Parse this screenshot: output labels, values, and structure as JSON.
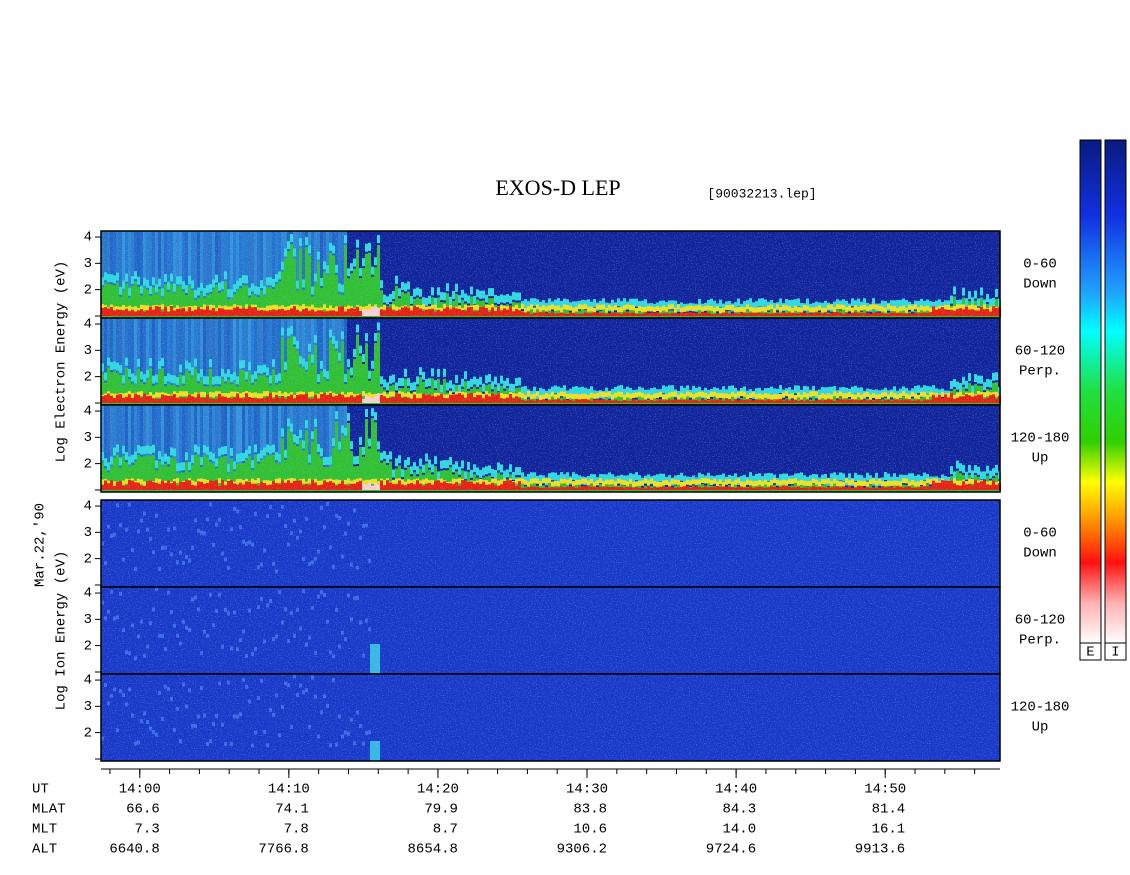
{
  "title": "EXOS-D LEP",
  "file_label": "[90032213.lep]",
  "date_label": "Mar.22,'90",
  "chart_data": {
    "type": "spectrogram",
    "xlim": [
      -2.6,
      57.7
    ],
    "xticks": [
      {
        "value": 0,
        "label": "14:00"
      },
      {
        "value": 10,
        "label": "14:10"
      },
      {
        "value": 20,
        "label": "14:20"
      },
      {
        "value": 30,
        "label": "14:30"
      },
      {
        "value": 40,
        "label": "14:40"
      },
      {
        "value": 50,
        "label": "14:50"
      }
    ],
    "ylim": [
      0.92,
      4.23
    ],
    "yticks": [
      2,
      3,
      4
    ],
    "groups": [
      {
        "label": "Log Electron Energy (eV)",
        "panels": [
          {
            "label": [
              "0-60",
              "Down"
            ]
          },
          {
            "label": [
              "60-120",
              "Perp."
            ]
          },
          {
            "label": [
              "120-180",
              "Up"
            ]
          }
        ]
      },
      {
        "label": "Log Ion Energy (eV)",
        "panels": [
          {
            "label": [
              "0-60",
              "Down"
            ]
          },
          {
            "label": [
              "60-120",
              "Perp."
            ]
          },
          {
            "label": [
              "120-180",
              "Up"
            ]
          }
        ]
      }
    ]
  },
  "colorbar": {
    "labels": [
      "E",
      "I"
    ]
  },
  "ephemeris": {
    "x_label": "UT",
    "rows": [
      {
        "name": "MLAT",
        "values": [
          "66.6",
          "74.1",
          "79.9",
          "83.8",
          "84.3",
          "81.4"
        ]
      },
      {
        "name": "MLT",
        "values": [
          "7.3",
          "7.8",
          "8.7",
          "10.6",
          "14.0",
          "16.1"
        ]
      },
      {
        "name": "ALT",
        "values": [
          "6640.8",
          "7766.8",
          "8654.8",
          "9306.2",
          "9724.6",
          "9913.6"
        ]
      }
    ]
  }
}
